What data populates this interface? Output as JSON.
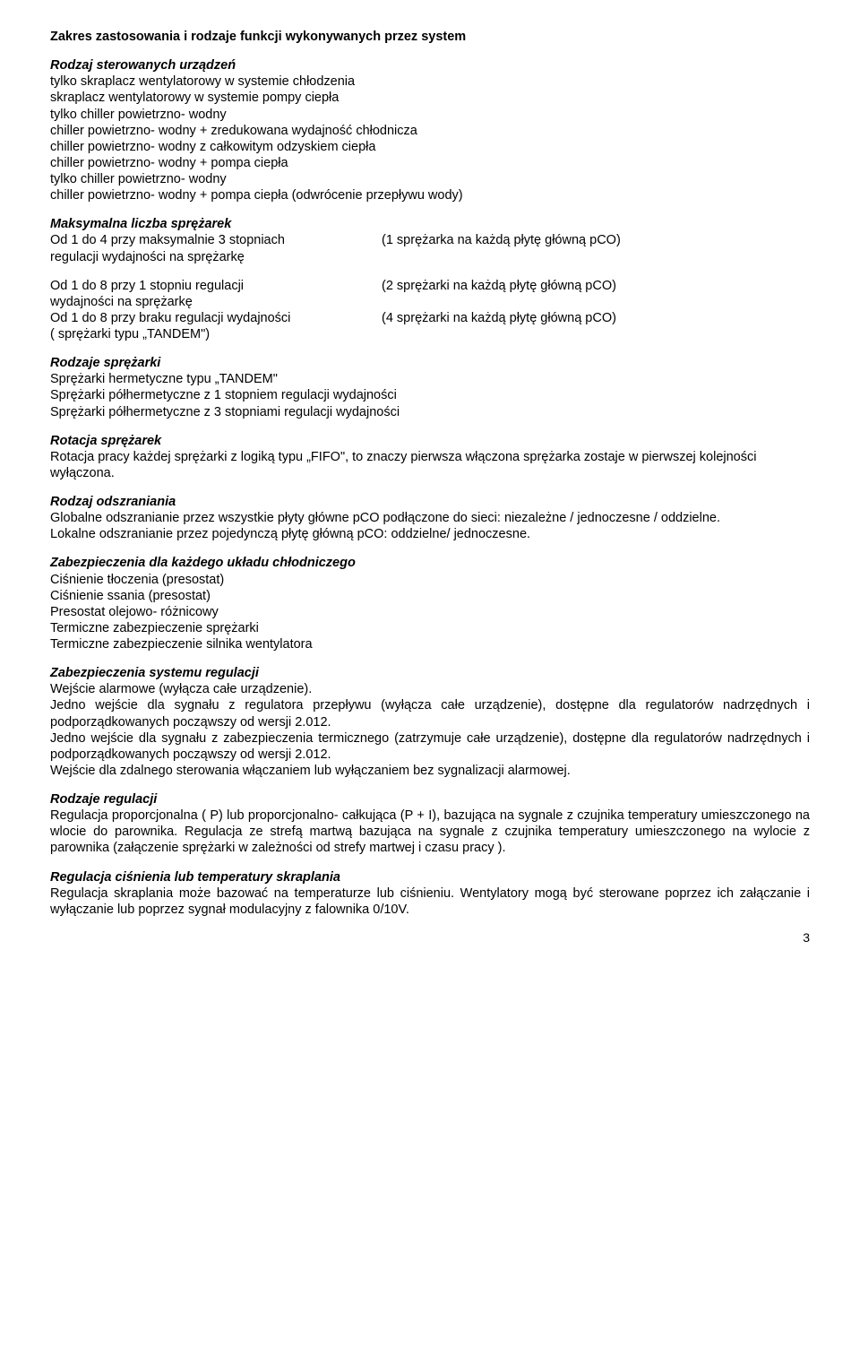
{
  "sec1": {
    "title": "Zakres zastosowania i rodzaje funkcji wykonywanych przez  system",
    "h1": "Rodzaj sterowanych  urządzeń",
    "l1": "tylko skraplacz wentylatorowy w systemie chłodzenia",
    "l2": "skraplacz wentylatorowy w systemie pompy ciepła",
    "l3": "tylko chiller powietrzno- wodny",
    "l4": "chiller powietrzno- wodny + zredukowana wydajność chłodnicza",
    "l5": "chiller powietrzno- wodny z całkowitym odzyskiem ciepła",
    "l6": "chiller powietrzno- wodny + pompa ciepła",
    "l7": "tylko chiller powietrzno- wodny",
    "l8": "chiller powietrzno- wodny + pompa ciepła (odwrócenie przepływu wody)"
  },
  "sec2": {
    "h": "Maksymalna liczba sprężarek",
    "r1l": "Od 1 do 4 przy maksymalnie 3 stopniach",
    "r1r": "(1 sprężarka na każdą płytę  główną pCO)",
    "r1b": "regulacji wydajności na sprężarkę"
  },
  "sec3": {
    "r1l": "Od 1 do 8 przy 1 stopniu regulacji",
    "r1r": "(2 sprężarki na każdą płytę główną pCO)",
    "r2l": "wydajności na sprężarkę",
    "r3l": "Od 1 do 8 przy braku regulacji wydajności",
    "r3r": "(4 sprężarki na każdą płytę główną pCO)",
    "r4l": "( sprężarki typu „TANDEM\")"
  },
  "sec4": {
    "h": "Rodzaje  sprężarki",
    "l1": "Sprężarki hermetyczne typu „TANDEM\"",
    "l2": "Sprężarki półhermetyczne z 1 stopniem regulacji wydajności",
    "l3": "Sprężarki półhermetyczne z 3 stopniami regulacji  wydajności"
  },
  "sec5": {
    "h": "Rotacja  sprężarek",
    "p": "Rotacja pracy każdej sprężarki z logiką typu „FIFO\", to znaczy pierwsza włączona sprężarka zostaje w pierwszej kolejności wyłączona."
  },
  "sec6": {
    "h": "Rodzaj  odszraniania",
    "p1": "Globalne odszranianie przez wszystkie płyty główne pCO podłączone do sieci: niezależne / jednoczesne / oddzielne.",
    "p2": "Lokalne odszranianie przez pojedynczą płytę główną pCO: oddzielne/ jednoczesne."
  },
  "sec7": {
    "h": "Zabezpieczenia dla każdego  układu  chłodniczego",
    "l1": "Ciśnienie tłoczenia  (presostat)",
    "l2": "Ciśnienie ssania (presostat)",
    "l3": "Presostat olejowo- różnicowy",
    "l4": "Termiczne zabezpieczenie sprężarki",
    "l5": "Termiczne zabezpieczenie silnika wentylatora"
  },
  "sec8": {
    "h": "Zabezpieczenia  systemu  regulacji",
    "p1": "Wejście  alarmowe (wyłącza całe urządzenie).",
    "p2": "Jedno wejście dla sygnału z regulatora przepływu (wyłącza całe urządzenie), dostępne dla regulatorów nadrzędnych i podporządkowanych począwszy od wersji  2.012.",
    "p3": "Jedno wejście dla sygnału z zabezpieczenia termicznego (zatrzymuje całe urządzenie), dostępne dla regulatorów nadrzędnych i podporządkowanych począwszy od wersji 2.012.",
    "p4": "Wejście dla zdalnego sterowania włączaniem lub wyłączaniem bez sygnalizacji alarmowej."
  },
  "sec9": {
    "h": "Rodzaje  regulacji",
    "p": "Regulacja proporcjonalna ( P) lub proporcjonalno- całkująca (P + I), bazująca na sygnale z czujnika temperatury umieszczonego na wlocie do parownika. Regulacja ze strefą martwą bazująca na sygnale z czujnika temperatury umieszczonego na wylocie z parownika (załączenie sprężarki w zależności od strefy martwej i czasu pracy )."
  },
  "sec10": {
    "h": "Regulacja  ciśnienia lub temperatury skraplania",
    "p": "Regulacja skraplania może bazować na temperaturze lub ciśnieniu. Wentylatory mogą być sterowane poprzez ich załączanie i wyłączanie lub poprzez sygnał  modulacyjny z falownika 0/10V."
  },
  "page": "3"
}
